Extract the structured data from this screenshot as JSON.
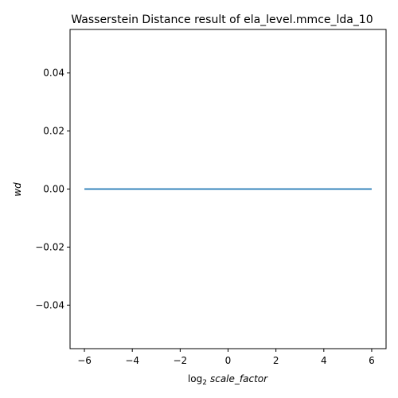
{
  "chart_data": {
    "type": "line",
    "title": "Wasserstein Distance result of ela_level.mmce_lda_10",
    "xlabel": {
      "prefix": "log",
      "subscript": "2",
      "var": "scale_factor"
    },
    "ylabel": "wd",
    "xlim": [
      -6.6,
      6.6
    ],
    "ylim": [
      -0.055,
      0.055
    ],
    "xticks": [
      -6,
      -4,
      -2,
      0,
      2,
      4,
      6
    ],
    "xtick_labels": [
      "−6",
      "−4",
      "−2",
      "0",
      "2",
      "4",
      "6"
    ],
    "yticks": [
      -0.04,
      -0.02,
      0.0,
      0.02,
      0.04
    ],
    "ytick_labels": [
      "−0.04",
      "−0.02",
      "0.00",
      "0.02",
      "0.04"
    ],
    "grid": false,
    "series": [
      {
        "color": "#1f77b4",
        "x": [
          -6,
          -5,
          -4,
          -3,
          -2,
          -1,
          0,
          1,
          2,
          3,
          4,
          5,
          6
        ],
        "y": [
          0,
          0,
          0,
          0,
          0,
          0,
          0,
          0,
          0,
          0,
          0,
          0,
          0
        ]
      }
    ]
  }
}
